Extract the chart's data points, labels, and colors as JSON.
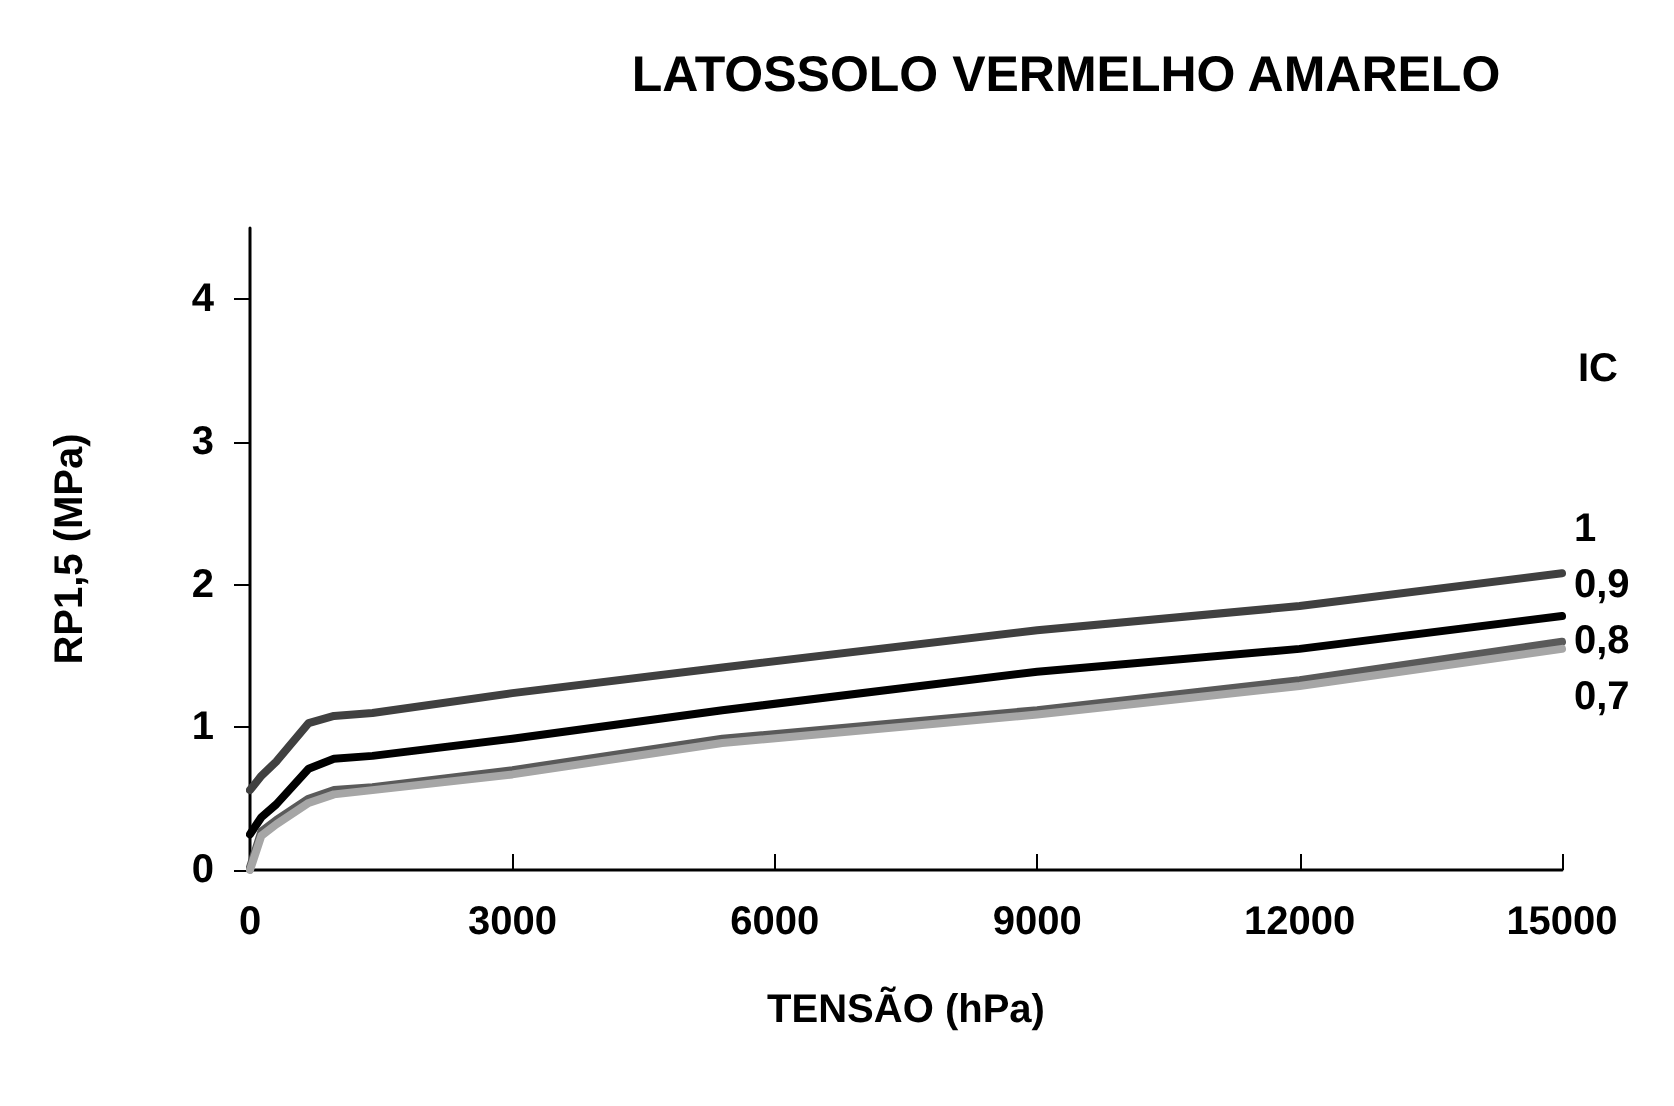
{
  "chart_data": {
    "type": "line",
    "title": "LATOSSOLO VERMELHO AMARELO",
    "xlabel": "TENSÃO (hPa)",
    "ylabel": "RP1,5 (MPa)",
    "legend_title": "IC",
    "x": [
      0,
      130,
      300,
      670,
      960,
      1400,
      3000,
      5400,
      9000,
      12000,
      15000
    ],
    "series": [
      {
        "name": "1",
        "color": "#404040",
        "values": [
          0.56,
          0.66,
          0.76,
          1.03,
          1.08,
          1.1,
          1.24,
          1.42,
          1.68,
          1.85,
          2.08
        ]
      },
      {
        "name": "0,9",
        "color": "#000000",
        "values": [
          0.25,
          0.37,
          0.46,
          0.71,
          0.78,
          0.8,
          0.92,
          1.12,
          1.39,
          1.55,
          1.78
        ]
      },
      {
        "name": "0,8",
        "color": "#5a5a5a",
        "values": [
          0.02,
          0.27,
          0.35,
          0.5,
          0.56,
          0.58,
          0.7,
          0.92,
          1.12,
          1.33,
          1.6
        ]
      },
      {
        "name": "0,7",
        "color": "#a6a6a6",
        "values": [
          0.0,
          0.24,
          0.32,
          0.47,
          0.53,
          0.56,
          0.67,
          0.89,
          1.09,
          1.29,
          1.55
        ]
      }
    ],
    "xlim": [
      0,
      15000
    ],
    "xticks": [
      0,
      3000,
      6000,
      9000,
      12000,
      15000
    ],
    "ylim": [
      0,
      4.5
    ],
    "yticks": [
      0,
      1,
      2,
      3,
      4
    ],
    "grid": false,
    "legend": false,
    "marker": "none",
    "line_style": "solid"
  }
}
